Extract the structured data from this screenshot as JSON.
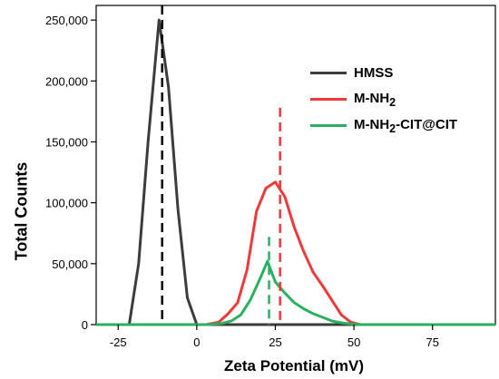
{
  "chart_data": {
    "type": "line",
    "title": "",
    "xlabel": "Zeta Potential (mV)",
    "ylabel": "Total Counts",
    "xlim": [
      -32,
      95
    ],
    "ylim": [
      0,
      262000
    ],
    "x_ticks": [
      -25,
      0,
      25,
      50,
      75
    ],
    "x_tick_labels": [
      "-25",
      "0",
      "25",
      "50",
      "75"
    ],
    "y_ticks": [
      0,
      50000,
      100000,
      150000,
      200000,
      250000
    ],
    "y_tick_labels": [
      "0",
      "50,000",
      "100,000",
      "150,000",
      "200,000",
      "250,000"
    ],
    "grid": false,
    "legend_position": "top-right",
    "series": [
      {
        "name": "HMSS",
        "color": "#3c3c3c",
        "points": [
          [
            -32,
            0
          ],
          [
            -21.5,
            0
          ],
          [
            -18.5,
            50000
          ],
          [
            -15.5,
            150000
          ],
          [
            -12,
            250000
          ],
          [
            -9,
            195000
          ],
          [
            -6,
            95000
          ],
          [
            -3,
            22000
          ],
          [
            0,
            0
          ],
          [
            95,
            0
          ]
        ]
      },
      {
        "name": "M-NH2",
        "name_main": "M-NH",
        "name_sub": "2",
        "name_rest": "",
        "color": "#ee3a3a",
        "points": [
          [
            -32,
            0
          ],
          [
            3,
            0
          ],
          [
            7,
            2000
          ],
          [
            10,
            9000
          ],
          [
            13,
            18000
          ],
          [
            16,
            45000
          ],
          [
            19,
            93000
          ],
          [
            22,
            112000
          ],
          [
            25,
            117000
          ],
          [
            28,
            105000
          ],
          [
            31,
            80000
          ],
          [
            34,
            60000
          ],
          [
            37,
            43000
          ],
          [
            40,
            32000
          ],
          [
            43,
            20000
          ],
          [
            46,
            8000
          ],
          [
            49,
            2000
          ],
          [
            52,
            0
          ],
          [
            95,
            0
          ]
        ]
      },
      {
        "name": "M-NH2-CIT@CIT",
        "name_main": "M-NH",
        "name_sub": "2",
        "name_rest": "-CIT@CIT",
        "color": "#2bb061",
        "points": [
          [
            -32,
            0
          ],
          [
            4,
            0
          ],
          [
            8,
            1000
          ],
          [
            11,
            3000
          ],
          [
            14,
            8000
          ],
          [
            17,
            20000
          ],
          [
            20,
            37000
          ],
          [
            22.5,
            52000
          ],
          [
            25,
            35000
          ],
          [
            28,
            26000
          ],
          [
            31,
            18000
          ],
          [
            34,
            13000
          ],
          [
            37,
            9000
          ],
          [
            40,
            6000
          ],
          [
            43,
            3000
          ],
          [
            46,
            1500
          ],
          [
            49,
            500
          ],
          [
            52,
            0
          ],
          [
            95,
            0
          ]
        ]
      }
    ],
    "peak_markers": [
      {
        "x": -11,
        "y_top": 262000,
        "color": "#000000"
      },
      {
        "x": 26.5,
        "y_top": 178000,
        "color": "#ee3a3a"
      },
      {
        "x": 23,
        "y_top": 72000,
        "color": "#2bb061"
      }
    ]
  }
}
